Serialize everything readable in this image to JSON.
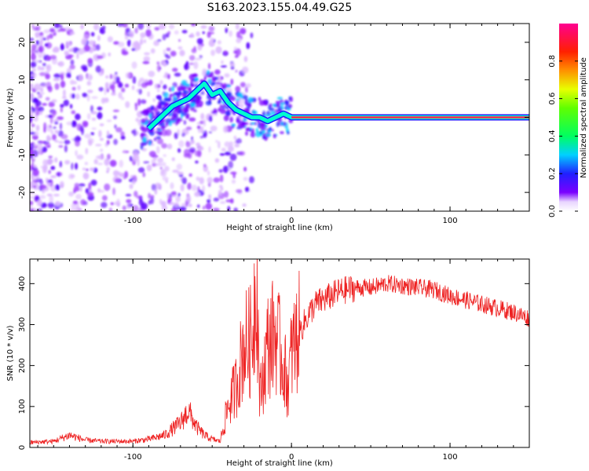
{
  "title": "S163.2023.155.04.49.G25",
  "chart_data": [
    {
      "type": "heatmap",
      "xlabel": "Height of straight line (km)",
      "ylabel": "Frequency (Hz)",
      "xlim": [
        -165,
        150
      ],
      "ylim": [
        -25,
        25
      ],
      "x_ticks": [
        -100,
        0,
        100
      ],
      "y_ticks": [
        -20,
        -10,
        0,
        10,
        20
      ],
      "colorbar": {
        "label": "Normalized spectral amplitude",
        "range": [
          0,
          1
        ],
        "ticks": [
          0.0,
          0.2,
          0.4,
          0.6,
          0.8
        ]
      },
      "ridge": {
        "x": [
          -90,
          -85,
          -80,
          -75,
          -70,
          -65,
          -60,
          -55,
          -50,
          -45,
          -40,
          -35,
          -30,
          -25,
          -20,
          -15,
          -10,
          -5,
          0,
          5,
          50,
          100,
          150
        ],
        "y": [
          -3,
          -1,
          1,
          3,
          4,
          5,
          7,
          9,
          6,
          7,
          4,
          2,
          1,
          0,
          0,
          -1,
          0,
          1,
          0,
          0,
          0,
          0,
          0
        ]
      },
      "grid": false
    },
    {
      "type": "line",
      "xlabel": "Height of straight line (km)",
      "ylabel": "SNR (10 * v/v)",
      "xlim": [
        -165,
        150
      ],
      "ylim": [
        0,
        460
      ],
      "x_ticks": [
        -100,
        0,
        100
      ],
      "y_ticks": [
        0,
        100,
        200,
        300,
        400
      ],
      "color": "#ee2222",
      "x": [
        -165,
        -150,
        -140,
        -130,
        -120,
        -110,
        -100,
        -90,
        -80,
        -70,
        -65,
        -60,
        -55,
        -50,
        -45,
        -40,
        -35,
        -30,
        -25,
        -22,
        -20,
        -15,
        -10,
        -5,
        -2,
        0,
        5,
        10,
        15,
        20,
        25,
        30,
        40,
        50,
        60,
        70,
        80,
        90,
        100,
        110,
        120,
        130,
        140,
        150
      ],
      "y": [
        12,
        15,
        30,
        18,
        15,
        15,
        15,
        20,
        30,
        60,
        90,
        50,
        30,
        20,
        15,
        100,
        150,
        250,
        260,
        440,
        120,
        250,
        280,
        200,
        150,
        230,
        280,
        320,
        350,
        360,
        370,
        380,
        390,
        390,
        400,
        395,
        390,
        385,
        370,
        360,
        350,
        340,
        330,
        315
      ],
      "grid": false
    }
  ]
}
